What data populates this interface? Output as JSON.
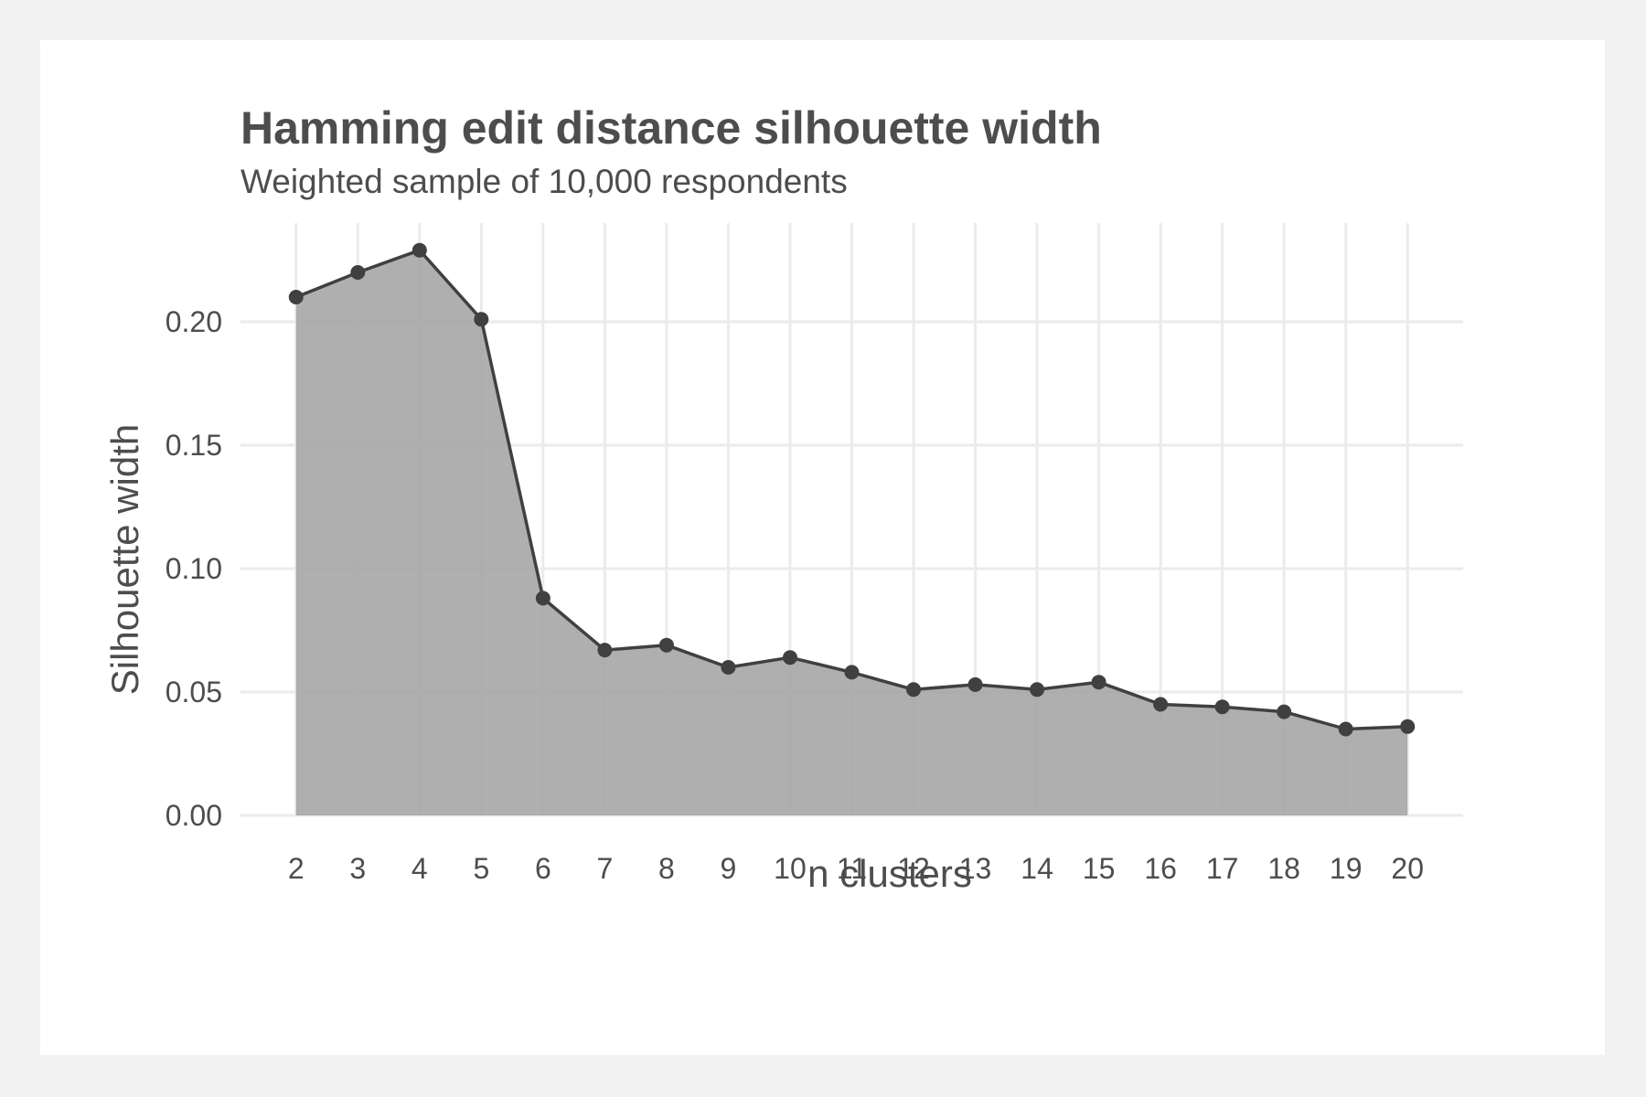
{
  "chart_data": {
    "type": "area",
    "title": "Hamming edit distance silhouette width",
    "subtitle": "Weighted sample of 10,000 respondents",
    "xlabel": "n clusters",
    "ylabel": "Silhouette width",
    "x": [
      2,
      3,
      4,
      5,
      6,
      7,
      8,
      9,
      10,
      11,
      12,
      13,
      14,
      15,
      16,
      17,
      18,
      19,
      20
    ],
    "values": [
      0.21,
      0.22,
      0.229,
      0.201,
      0.088,
      0.067,
      0.069,
      0.06,
      0.064,
      0.058,
      0.051,
      0.053,
      0.051,
      0.054,
      0.045,
      0.044,
      0.042,
      0.035,
      0.036
    ],
    "x_ticks": [
      "2",
      "3",
      "4",
      "5",
      "6",
      "7",
      "8",
      "9",
      "10",
      "11",
      "12",
      "13",
      "14",
      "15",
      "16",
      "17",
      "18",
      "19",
      "20"
    ],
    "y_ticks": [
      0.0,
      0.05,
      0.1,
      0.15,
      0.2
    ],
    "y_tick_labels": [
      "0.00",
      "0.05",
      "0.10",
      "0.15",
      "0.20"
    ],
    "xlim": [
      1.1,
      20.9
    ],
    "ylim": [
      0,
      0.24
    ],
    "grid": true,
    "legend": "none",
    "colors": {
      "background": "#f2f2f2",
      "panel": "#ffffff",
      "grid": "#ebebeb",
      "area_fill": "#a6a6a6",
      "line": "#404040",
      "text": "#4d4d4d"
    }
  }
}
